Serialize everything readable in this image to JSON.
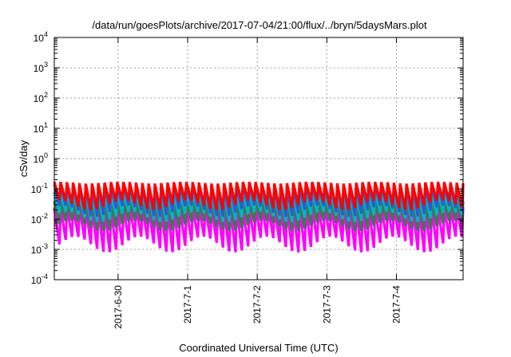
{
  "chart_data": {
    "type": "line",
    "title": "/data/run/goesPlots/archive/2017-07-04/21:00/flux/../bryn/5daysMars.plot",
    "xlabel": "Coordinated Universal Time (UTC)",
    "ylabel": "cSv/day",
    "y_scale": "log",
    "ylim": [
      0.0001,
      10000
    ],
    "x_range_days": [
      "2017-06-29 02:00",
      "2017-07-04 23:00"
    ],
    "y_ticks": [
      {
        "base": "10",
        "exp": "-4",
        "value": 0.0001
      },
      {
        "base": "10",
        "exp": "-3",
        "value": 0.001
      },
      {
        "base": "10",
        "exp": "-2",
        "value": 0.01
      },
      {
        "base": "10",
        "exp": "-1",
        "value": 0.1
      },
      {
        "base": "10",
        "exp": "0",
        "value": 1
      },
      {
        "base": "10",
        "exp": "1",
        "value": 10
      },
      {
        "base": "10",
        "exp": "2",
        "value": 100
      },
      {
        "base": "10",
        "exp": "3",
        "value": 1000
      },
      {
        "base": "10",
        "exp": "4",
        "value": 10000
      }
    ],
    "x_ticks": [
      {
        "label": "2017-6-30",
        "date": "2017-06-30"
      },
      {
        "label": "2017-7-1",
        "date": "2017-07-01"
      },
      {
        "label": "2017-7-2",
        "date": "2017-07-02"
      },
      {
        "label": "2017-7-3",
        "date": "2017-07-03"
      },
      {
        "label": "2017-7-4",
        "date": "2017-07-04"
      }
    ],
    "grid": true,
    "sawtooth_cycles_per_day": 11,
    "series": [
      {
        "color": "#ff0000",
        "peak": 0.17,
        "trough": 0.02
      },
      {
        "color": "#2a5cd8",
        "peak": 0.14,
        "trough": 0.012
      },
      {
        "color": "#00b4c8",
        "peak": 0.08,
        "trough": 0.008
      },
      {
        "color": "#3a7a50",
        "peak": 0.04,
        "trough": 0.004
      },
      {
        "color": "#ff00ff",
        "peak": 0.025,
        "trough": 0.0008
      }
    ]
  }
}
